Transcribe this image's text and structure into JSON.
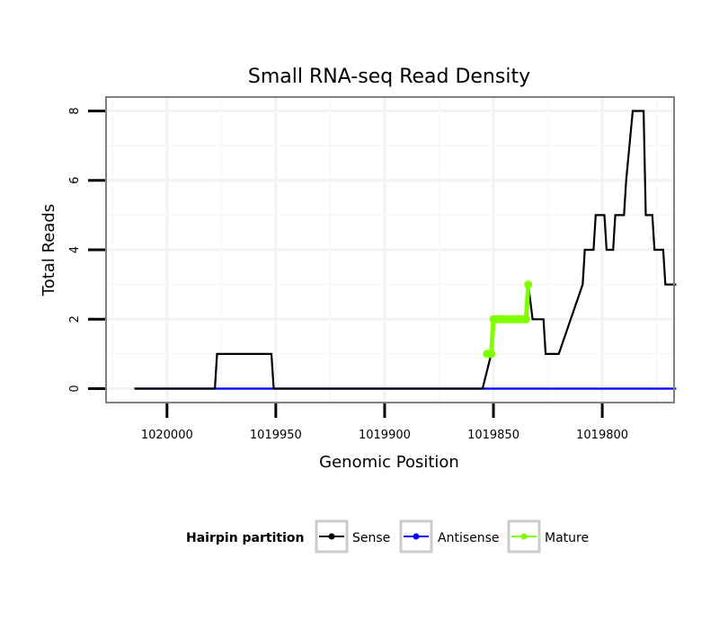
{
  "chart_data": {
    "type": "line",
    "title": "Small RNA-seq Read Density",
    "xlabel": "Genomic Position",
    "ylabel": "Total Reads",
    "x_reversed": true,
    "xlim": [
      1020028,
      1019767
    ],
    "ylim": [
      -0.4,
      8.4
    ],
    "x_ticks": [
      1020000,
      1019950,
      1019900,
      1019850,
      1019800
    ],
    "x_tick_labels": [
      "1020000",
      "1019950",
      "1019900",
      "1019850",
      "1019800"
    ],
    "y_ticks": [
      0,
      2,
      4,
      6,
      8
    ],
    "y_tick_labels": [
      "0",
      "2",
      "4",
      "6",
      "8"
    ],
    "grid": true,
    "legend": {
      "title": "Hairpin partition",
      "position": "bottom",
      "entries": [
        {
          "label": "Sense",
          "color": "#000000"
        },
        {
          "label": "Antisense",
          "color": "#0000ff"
        },
        {
          "label": "Mature",
          "color": "#7fff00"
        }
      ]
    },
    "series": [
      {
        "name": "Sense",
        "color": "#000000",
        "x": [
          1020015,
          1019978,
          1019977,
          1019952,
          1019951,
          1019855,
          1019851,
          1019850,
          1019835,
          1019834,
          1019832,
          1019827,
          1019826,
          1019821,
          1019820,
          1019809,
          1019808,
          1019804,
          1019803,
          1019799,
          1019798,
          1019795,
          1019794,
          1019790,
          1019789,
          1019786,
          1019785,
          1019781,
          1019780,
          1019777,
          1019776,
          1019772,
          1019771,
          1019766
        ],
        "y": [
          0,
          0,
          1,
          1,
          0,
          0,
          1,
          2,
          2,
          3,
          2,
          2,
          1,
          1,
          1,
          3,
          4,
          4,
          5,
          5,
          4,
          4,
          5,
          5,
          6,
          8,
          8,
          8,
          5,
          5,
          4,
          4,
          3,
          3
        ]
      },
      {
        "name": "Antisense",
        "color": "#0000ff",
        "x": [
          1020015,
          1019766
        ],
        "y": [
          0,
          0
        ]
      },
      {
        "name": "Mature",
        "color": "#7fff00",
        "x": [
          1019853,
          1019852,
          1019851,
          1019850,
          1019849,
          1019848,
          1019847,
          1019846,
          1019845,
          1019844,
          1019843,
          1019842,
          1019841,
          1019840,
          1019839,
          1019838,
          1019837,
          1019836,
          1019835,
          1019834
        ],
        "y": [
          1,
          1,
          1,
          2,
          2,
          2,
          2,
          2,
          2,
          2,
          2,
          2,
          2,
          2,
          2,
          2,
          2,
          2,
          2,
          3
        ]
      }
    ]
  }
}
